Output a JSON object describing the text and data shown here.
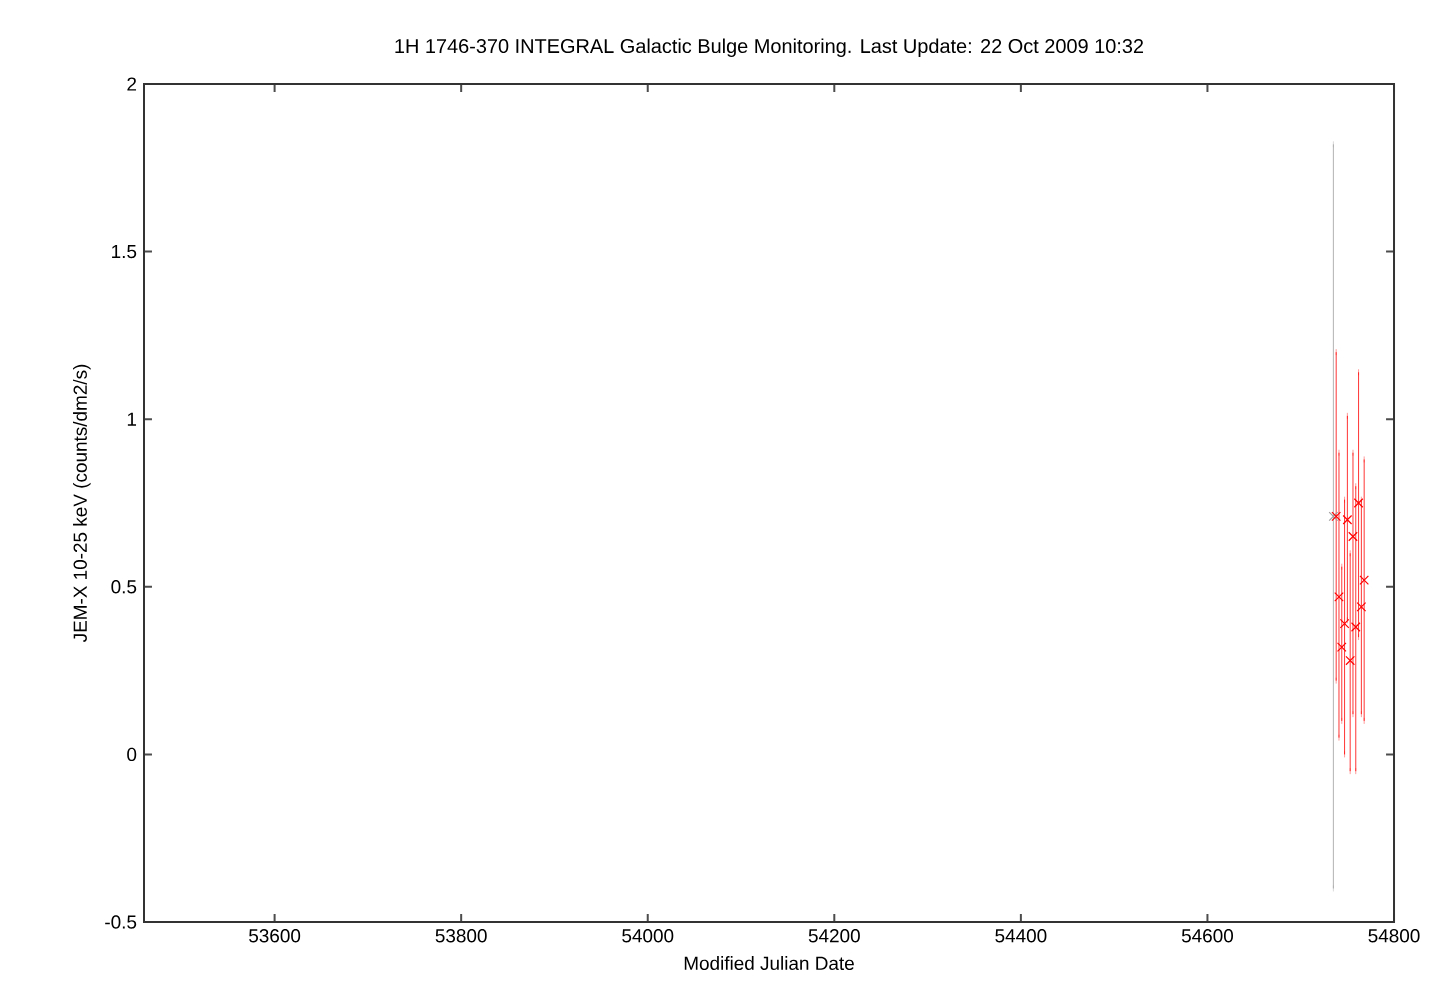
{
  "chart_data": {
    "type": "scatter",
    "title": "1H 1746-370   INTEGRAL Galactic Bulge Monitoring.  Last Update: 22 Oct 2009 10:32",
    "xlabel": "Modified Julian Date",
    "ylabel": "JEM-X 10-25 keV (counts/dm2/s)",
    "xlim": [
      53460,
      54800
    ],
    "xticks": [
      53600,
      53800,
      54000,
      54200,
      54400,
      54600,
      54800
    ],
    "ylim": [
      -0.5,
      2
    ],
    "yticks": [
      -0.5,
      0,
      0.5,
      1,
      1.5,
      2
    ],
    "marker": "cross",
    "grid": false,
    "series": [
      {
        "color": "#a0a0a0",
        "x": [
          54735
        ],
        "values": [
          0.71
        ],
        "errors": [
          [
            -0.4,
            1.82
          ]
        ]
      },
      {
        "color": "#ff0000",
        "x": [
          54738,
          54762,
          54750,
          54756,
          54768,
          54741,
          54765,
          54747,
          54759,
          54744,
          54753
        ],
        "values": [
          0.71,
          0.75,
          0.7,
          0.65,
          0.52,
          0.47,
          0.44,
          0.39,
          0.38,
          0.32,
          0.28
        ],
        "errors": [
          [
            0.22,
            1.2
          ],
          [
            0.35,
            1.14
          ],
          [
            0.4,
            1.01
          ],
          [
            0.12,
            0.9
          ],
          [
            0.1,
            0.88
          ],
          [
            0.05,
            0.9
          ],
          [
            0.12,
            0.76
          ],
          [
            0.0,
            0.76
          ],
          [
            -0.05,
            0.8
          ],
          [
            0.1,
            0.56
          ],
          [
            -0.05,
            0.6
          ]
        ]
      }
    ]
  }
}
